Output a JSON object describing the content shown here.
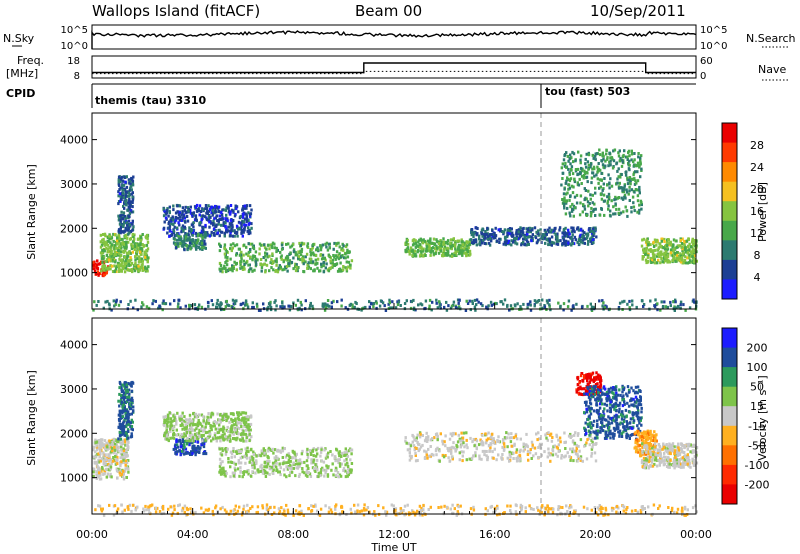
{
  "header": {
    "station": "Wallops Island (fitACF)",
    "beam": "Beam 00",
    "date": "10/Sep/2011"
  },
  "status_panels": {
    "nsky_label": "N.Sky",
    "nsky_ticks": [
      "10^5",
      "10^0"
    ],
    "nsearch_label": "N.Search",
    "nsearch_ticks": [
      "10^5",
      "10^0"
    ],
    "freq_label_1": "Freq.",
    "freq_label_2": "[MHz]",
    "freq_ticks": [
      "18",
      "8"
    ],
    "nave_label": "Nave",
    "nave_ticks": [
      "60",
      "0"
    ],
    "cpid_label": "CPID",
    "cpid_programs": [
      {
        "name": "themis (tau) 3310",
        "start_hour": 0.0
      },
      {
        "name": "tou (fast) 503",
        "start_hour": 18.0
      }
    ],
    "freq_mhz_profile": [
      [
        0,
        10.5
      ],
      [
        10.8,
        10.5
      ],
      [
        10.8,
        14.8
      ],
      [
        22.0,
        14.8
      ],
      [
        22.0,
        10.5
      ],
      [
        24,
        10.5
      ]
    ],
    "nave_profile": [
      [
        0,
        12
      ],
      [
        10.8,
        12
      ],
      [
        10.8,
        18
      ],
      [
        22.0,
        18
      ],
      [
        22.0,
        12
      ],
      [
        24,
        12
      ]
    ]
  },
  "colors": {
    "power_scale": [
      "#1c1cff",
      "#1c3f94",
      "#2c7a70",
      "#48a84a",
      "#86c440",
      "#f5c020",
      "#ff8a00",
      "#ff3a00",
      "#ea0000"
    ],
    "velocity_scale": [
      "#1c1cff",
      "#1f4d9c",
      "#2c9a5c",
      "#7ec44a",
      "#c8c8c8",
      "#ffb020",
      "#ff7000",
      "#ff2a00",
      "#ea0000"
    ],
    "noise": "#4a6ec8",
    "ground": "#c0c0c0"
  },
  "chart_data": [
    {
      "type": "heatmap",
      "name": "power",
      "ylabel": "Slant Range [km]",
      "xlabel": "",
      "xlim": [
        0,
        24
      ],
      "ylim": [
        180,
        4600
      ],
      "yticks": [
        "1000",
        "2000",
        "3000",
        "4000"
      ],
      "colorbar_label": "Power [dB]",
      "colorbar_ticks": [
        "28",
        "24",
        "20",
        "16",
        "12",
        "8",
        "4"
      ],
      "colorbar_range": [
        0,
        30
      ],
      "features": [
        {
          "t0": 0.0,
          "t1": 0.6,
          "r0": 950,
          "r1": 1300,
          "level": 27
        },
        {
          "t0": 0.3,
          "t1": 2.2,
          "r0": 1050,
          "r1": 1900,
          "level": 14
        },
        {
          "t0": 1.0,
          "t1": 1.6,
          "r0": 1900,
          "r1": 3200,
          "level": 6
        },
        {
          "t0": 2.8,
          "t1": 6.3,
          "r0": 1850,
          "r1": 2550,
          "level": 5
        },
        {
          "t0": 3.2,
          "t1": 4.5,
          "r0": 1550,
          "r1": 1900,
          "level": 9
        },
        {
          "t0": 5.0,
          "t1": 10.3,
          "r0": 1050,
          "r1": 1700,
          "level": 12
        },
        {
          "t0": 12.4,
          "t1": 15.0,
          "r0": 1400,
          "r1": 1800,
          "level": 13
        },
        {
          "t0": 15.0,
          "t1": 20.0,
          "r0": 1650,
          "r1": 2050,
          "level": 6
        },
        {
          "t0": 18.6,
          "t1": 21.8,
          "r0": 2300,
          "r1": 3800,
          "level": 10
        },
        {
          "t0": 21.8,
          "t1": 24.0,
          "r0": 1250,
          "r1": 1800,
          "level": 14
        },
        {
          "t0": 0.0,
          "t1": 24.0,
          "r0": 180,
          "r1": 420,
          "level": 8
        }
      ]
    },
    {
      "type": "heatmap",
      "name": "velocity",
      "ylabel": "Slant Range [km]",
      "xlabel": "Time UT",
      "xlim": [
        0,
        24
      ],
      "ylim": [
        180,
        4600
      ],
      "xticks": [
        "00:00",
        "04:00",
        "08:00",
        "12:00",
        "16:00",
        "20:00",
        "00:00"
      ],
      "yticks": [
        "1000",
        "2000",
        "3000",
        "4000"
      ],
      "colorbar_label": "Velocity [m s⁻¹]",
      "colorbar_ticks": [
        "200",
        "100",
        "50",
        "15",
        "-15",
        "-50",
        "-100",
        "-200"
      ],
      "colorbar_range": [
        -250,
        250
      ],
      "features": [
        {
          "t0": 0.0,
          "t1": 1.4,
          "r0": 1000,
          "r1": 1900,
          "level": 0
        },
        {
          "t0": 1.0,
          "t1": 1.6,
          "r0": 1900,
          "r1": 3200,
          "level": 150
        },
        {
          "t0": 3.2,
          "t1": 4.5,
          "r0": 1550,
          "r1": 1900,
          "level": 170
        },
        {
          "t0": 2.8,
          "t1": 6.3,
          "r0": 1850,
          "r1": 2500,
          "level": 40
        },
        {
          "t0": 5.0,
          "t1": 10.3,
          "r0": 1050,
          "r1": 1700,
          "level": 35
        },
        {
          "t0": 12.4,
          "t1": 20.0,
          "r0": 1400,
          "r1": 2050,
          "level": 0
        },
        {
          "t0": 19.2,
          "t1": 20.2,
          "r0": 2900,
          "r1": 3400,
          "level": -220
        },
        {
          "t0": 19.5,
          "t1": 21.8,
          "r0": 1900,
          "r1": 3100,
          "level": 160
        },
        {
          "t0": 21.5,
          "t1": 22.4,
          "r0": 1500,
          "r1": 2100,
          "level": -70
        },
        {
          "t0": 21.8,
          "t1": 24.0,
          "r0": 1250,
          "r1": 1800,
          "level": 0
        },
        {
          "t0": 0.0,
          "t1": 24.0,
          "r0": 180,
          "r1": 420,
          "level": -40
        }
      ]
    }
  ]
}
